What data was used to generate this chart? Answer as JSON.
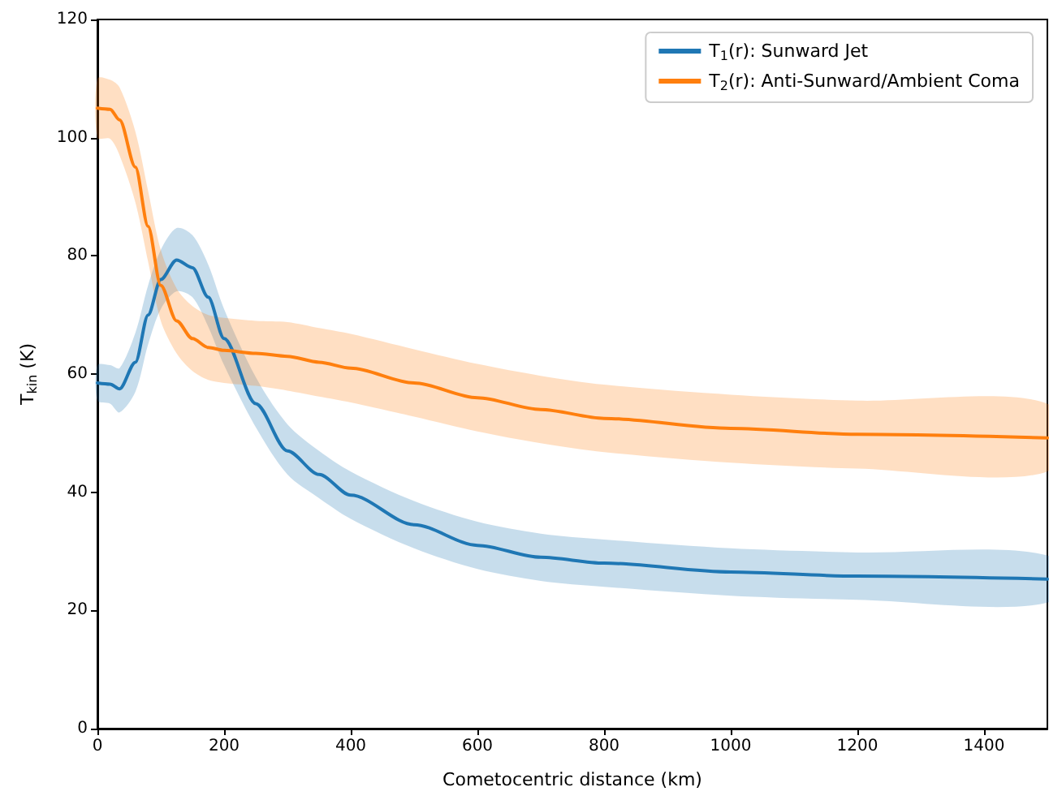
{
  "chart_data": {
    "type": "line",
    "xlabel": "Cometocentric distance (km)",
    "ylabel": "T$_{kin}$ (K)",
    "x": [
      0,
      20,
      35,
      60,
      80,
      100,
      125,
      150,
      175,
      200,
      250,
      300,
      350,
      400,
      500,
      600,
      700,
      800,
      1000,
      1200,
      1500
    ],
    "series": [
      {
        "name": "T$_{1}$(r): Sunward Jet",
        "color": "#1f77b4",
        "values": [
          58.5,
          58.3,
          57.5,
          62,
          70,
          76,
          79.3,
          78,
          73,
          66,
          55,
          47,
          43,
          39.5,
          34.5,
          31,
          29,
          28,
          26.5,
          25.8,
          25.3
        ],
        "lower": [
          55.5,
          55,
          53.5,
          57,
          65,
          71,
          74,
          73,
          68,
          61.5,
          51,
          43,
          39,
          35.5,
          30.5,
          27,
          25,
          24,
          22.5,
          21.8,
          21.3
        ],
        "upper": [
          61.5,
          61.5,
          61,
          67,
          75,
          81,
          84.7,
          83.5,
          78.5,
          71,
          59.5,
          51.5,
          47,
          43.5,
          38.5,
          35,
          33,
          32,
          30.5,
          29.8,
          29.3
        ]
      },
      {
        "name": "T$_{2}$(r): Anti-Sunward/Ambient Coma",
        "color": "#ff7f0e",
        "values": [
          105,
          104.8,
          103,
          95,
          85,
          75,
          69,
          66,
          64.5,
          64,
          63.5,
          63,
          62,
          61,
          58.5,
          56,
          54,
          52.5,
          50.8,
          49.8,
          49.2
        ],
        "lower": [
          100,
          99.8,
          97,
          89,
          79,
          69,
          63.5,
          60.5,
          59,
          58.5,
          58,
          57.2,
          56.2,
          55.2,
          52.8,
          50.3,
          48.3,
          46.8,
          45,
          44,
          43.5
        ],
        "upper": [
          110,
          109.8,
          108.5,
          101,
          91,
          81,
          74.5,
          71.5,
          70,
          69.5,
          69,
          68.8,
          67.8,
          66.8,
          64.2,
          61.7,
          59.7,
          58.2,
          56.5,
          55.5,
          55
        ]
      }
    ],
    "xlim": [
      0,
      1500
    ],
    "xticks": [
      0,
      200,
      400,
      600,
      800,
      1000,
      1200,
      1400
    ],
    "ylim": [
      0,
      120
    ],
    "yticks": [
      0,
      20,
      40,
      60,
      80,
      100,
      120
    ],
    "grid": false,
    "legend": "top right",
    "marker": "none",
    "line_style": "solid"
  }
}
